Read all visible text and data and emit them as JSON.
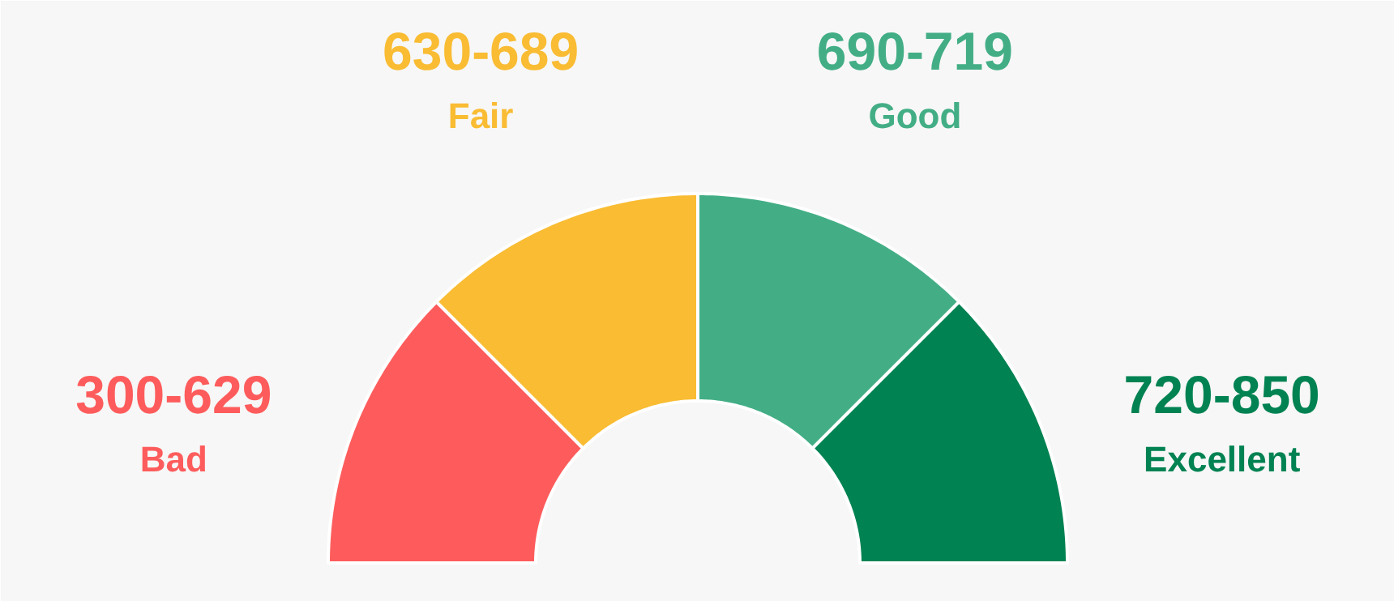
{
  "chart_data": {
    "type": "donut",
    "categories": [
      "Bad",
      "Fair",
      "Good",
      "Excellent"
    ],
    "values": [
      25,
      25,
      25,
      25
    ],
    "colors": [
      "#fe5c5c",
      "#f9bc33",
      "#43ae86",
      "#008252"
    ],
    "value_labels": [
      "300-629",
      "630-689",
      "690-719",
      "720-850"
    ]
  }
}
